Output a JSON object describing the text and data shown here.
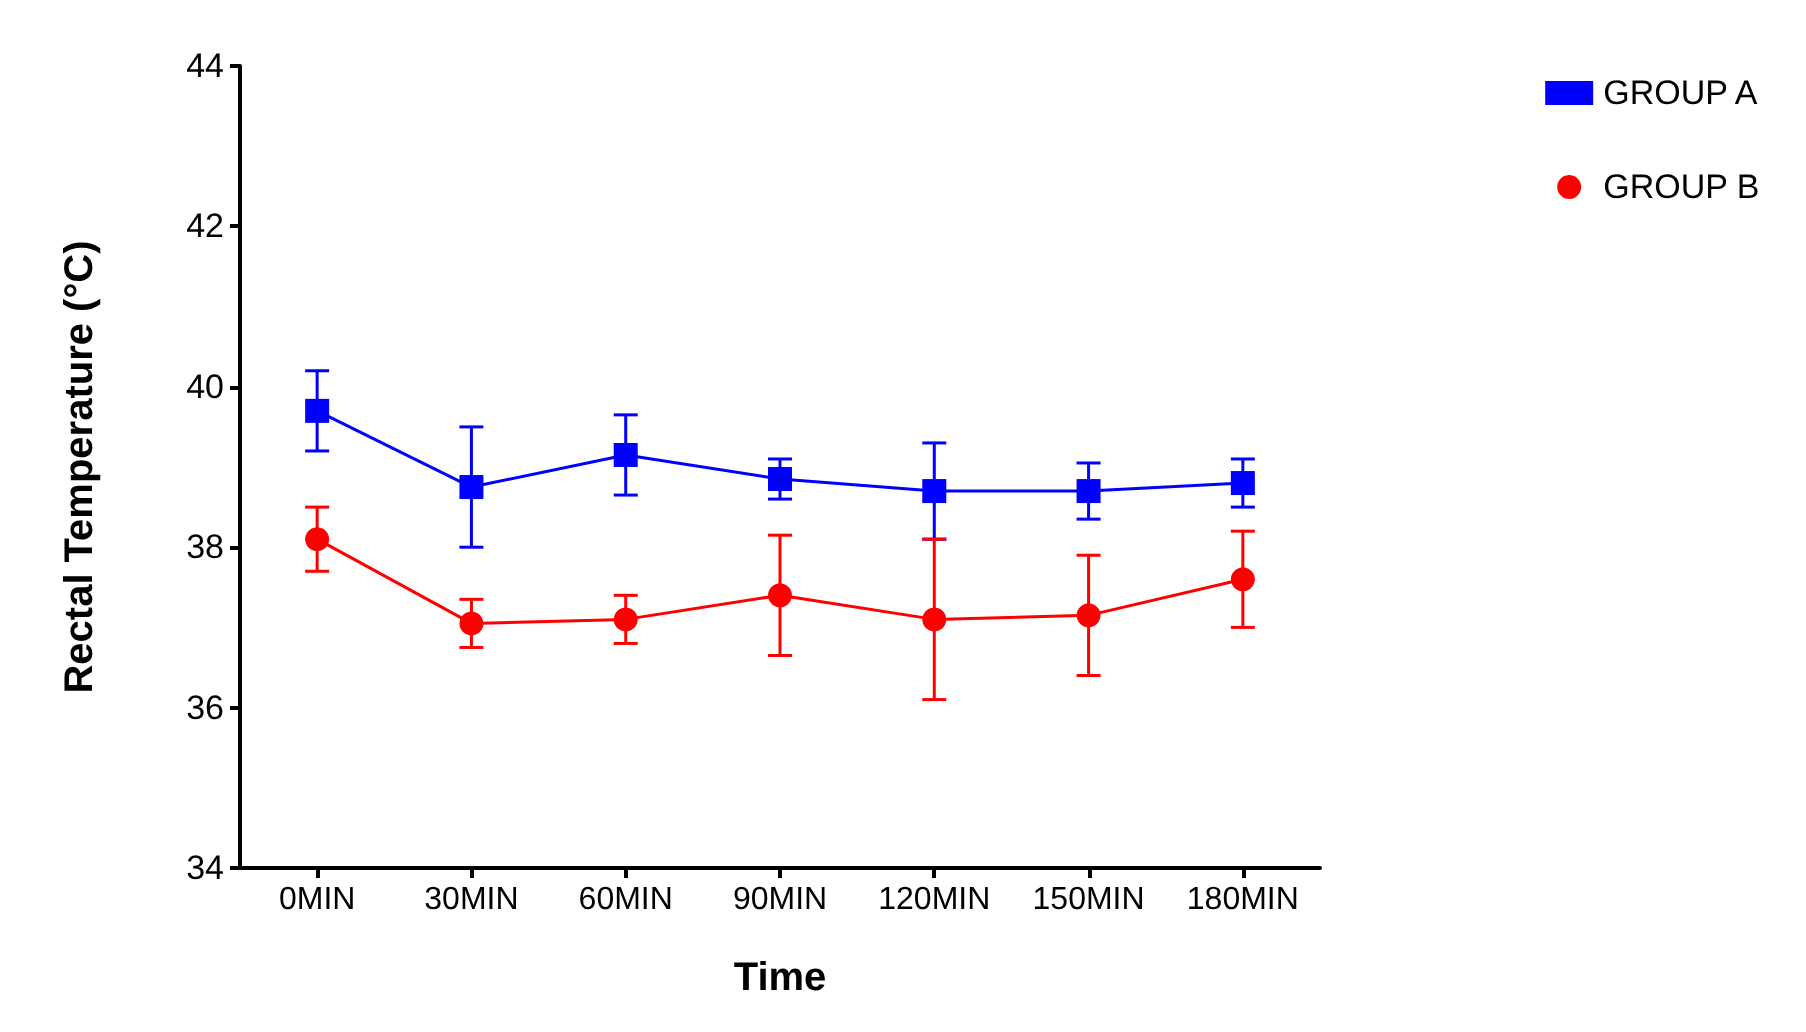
{
  "chart_data": {
    "type": "line",
    "xlabel": "Time",
    "ylabel": "Rectal Temperature (°C)",
    "categories": [
      "0MIN",
      "30MIN",
      "60MIN",
      "90MIN",
      "120MIN",
      "150MIN",
      "180MIN"
    ],
    "ylim": [
      34,
      44
    ],
    "yticks": [
      34,
      36,
      38,
      40,
      42,
      44
    ],
    "grid": false,
    "legend": "top right",
    "series": [
      {
        "name": "GROUP A",
        "color": "#0000ff",
        "marker": "square",
        "values": [
          39.7,
          38.75,
          39.15,
          38.85,
          38.7,
          38.7,
          38.8
        ],
        "errors": [
          0.5,
          0.75,
          0.5,
          0.25,
          0.6,
          0.35,
          0.3
        ]
      },
      {
        "name": "GROUP B",
        "color": "#ff0000",
        "marker": "circle",
        "values": [
          38.1,
          37.05,
          37.1,
          37.4,
          37.1,
          37.15,
          37.6
        ],
        "errors": [
          0.4,
          0.3,
          0.3,
          0.75,
          1.0,
          0.75,
          0.6
        ]
      }
    ]
  }
}
